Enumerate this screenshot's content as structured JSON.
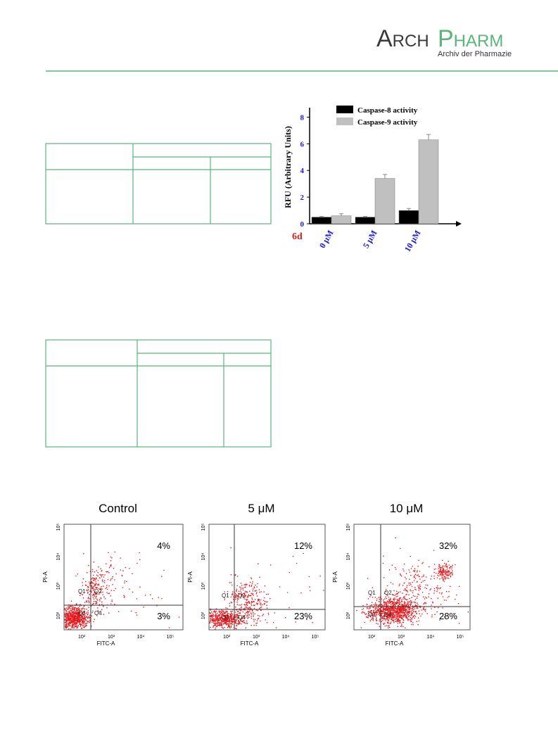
{
  "header": {
    "logo_arch": "Arch",
    "logo_pharm": "Pharm",
    "journal": "Archiv der Pharmazie"
  },
  "chart_data": {
    "type": "bar",
    "ylabel": "RFU (Arbitrary Units)",
    "compound": "6d",
    "categories": [
      "0 μM",
      "5 μM",
      "10 μM"
    ],
    "series": [
      {
        "name": "Caspase-8 activity",
        "color": "#000000",
        "values": [
          0.5,
          0.5,
          1.0
        ],
        "errors": [
          0.05,
          0.05,
          0.15
        ]
      },
      {
        "name": "Caspase-9 activity",
        "color": "#c0c0c0",
        "values": [
          0.6,
          3.4,
          6.3
        ],
        "errors": [
          0.15,
          0.3,
          0.4
        ]
      }
    ],
    "ylim": [
      0,
      8.5
    ],
    "yticks": [
      0,
      2,
      4,
      6,
      8
    ]
  },
  "flow_plots": {
    "y_label": "PI-A",
    "x_label": "FITC-A",
    "quadrants": [
      "Q1",
      "Q2",
      "Q3",
      "Q4"
    ],
    "log_ticks": [
      "10²",
      "10³",
      "10⁴",
      "10⁵"
    ],
    "panels": [
      {
        "title": "Control",
        "q2": "4%",
        "q4": "3%"
      },
      {
        "title": "5 μM",
        "q2": "12%",
        "q4": "23%"
      },
      {
        "title": "10 μM",
        "q2": "32%",
        "q4": "28%"
      }
    ]
  }
}
